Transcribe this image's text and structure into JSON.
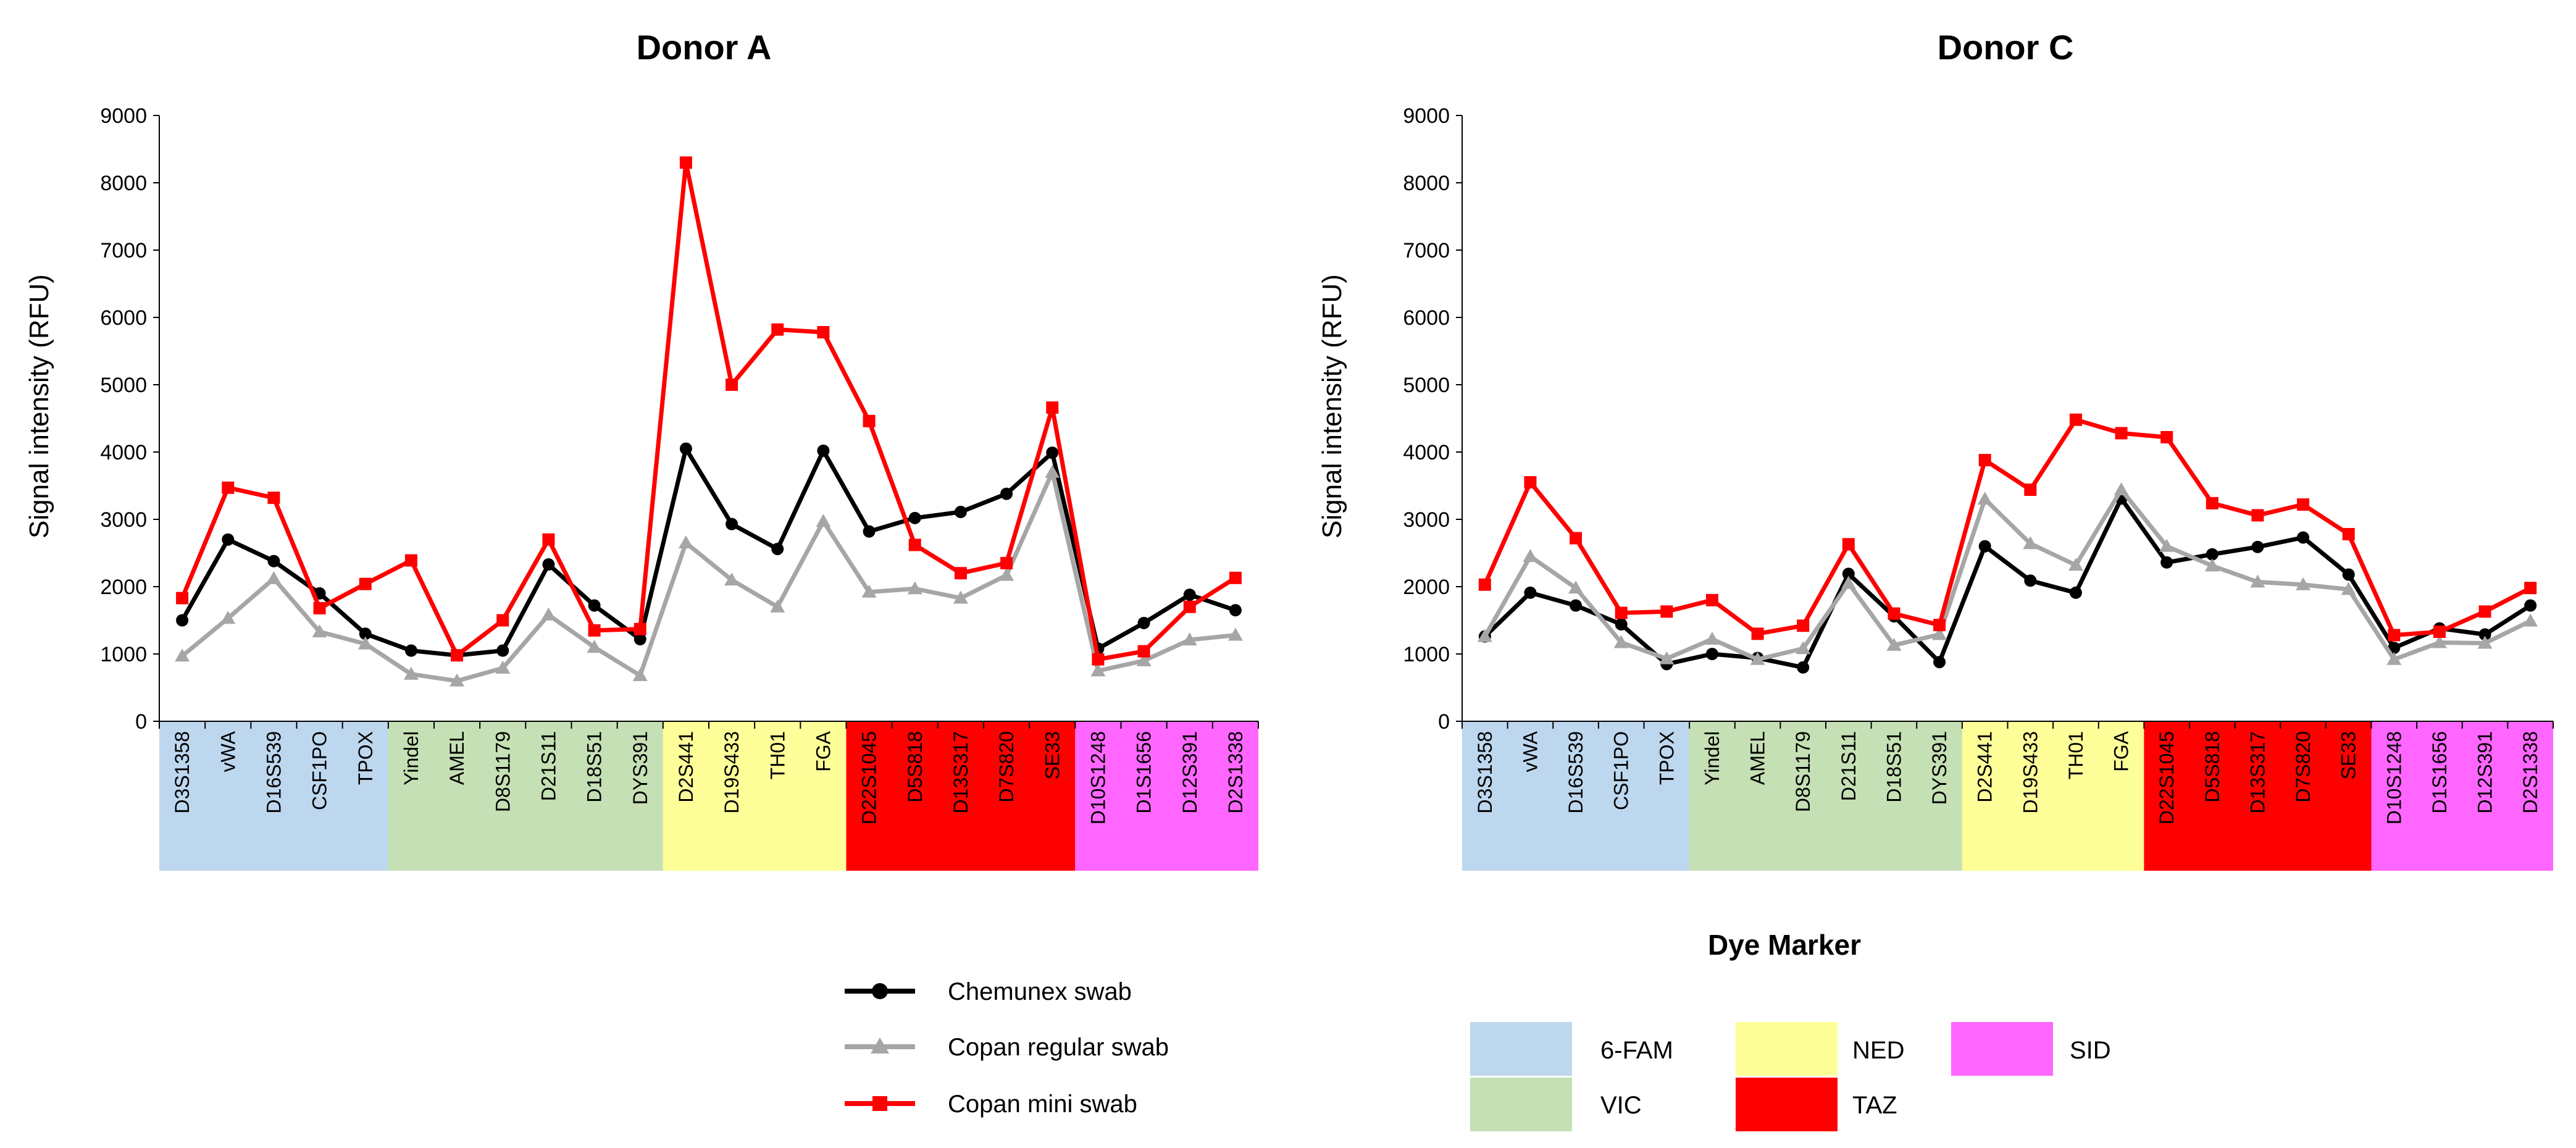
{
  "chart_data": [
    {
      "type": "line",
      "title": "Donor A",
      "xlabel": "",
      "ylabel": "Signal intensity (RFU)",
      "ylim": [
        0,
        9000
      ],
      "yticks": [
        0,
        1000,
        2000,
        3000,
        4000,
        5000,
        6000,
        7000,
        8000,
        9000
      ],
      "categories": [
        "D3S1358",
        "vWA",
        "D16S539",
        "CSF1PO",
        "TPOX",
        "Yindel",
        "AMEL",
        "D8S1179",
        "D21S11",
        "D18S51",
        "DYS391",
        "D2S441",
        "D19S433",
        "TH01",
        "FGA",
        "D22S1045",
        "D5S818",
        "D13S317",
        "D7S820",
        "SE33",
        "D10S1248",
        "D1S1656",
        "D12S391",
        "D2S1338"
      ],
      "dye_groups": [
        {
          "dye": "6-FAM",
          "count": 5
        },
        {
          "dye": "VIC",
          "count": 6
        },
        {
          "dye": "NED",
          "count": 4
        },
        {
          "dye": "TAZ",
          "count": 5
        },
        {
          "dye": "SID",
          "count": 4
        }
      ],
      "series": [
        {
          "name": "Chemunex swab",
          "values": [
            1500,
            2700,
            2380,
            1900,
            1300,
            1050,
            980,
            1050,
            2330,
            1720,
            1220,
            4050,
            2930,
            2560,
            4020,
            2820,
            3020,
            3110,
            3380,
            3990,
            1080,
            1460,
            1880,
            1650
          ]
        },
        {
          "name": "Copan regular swab",
          "values": [
            970,
            1530,
            2120,
            1330,
            1150,
            700,
            600,
            790,
            1580,
            1100,
            680,
            2650,
            2100,
            1700,
            2970,
            1920,
            1970,
            1830,
            2170,
            3700,
            750,
            900,
            1210,
            1280
          ]
        },
        {
          "name": "Copan mini swab",
          "values": [
            1830,
            3470,
            3320,
            1680,
            2040,
            2390,
            980,
            1500,
            2700,
            1350,
            1370,
            8300,
            5000,
            5820,
            5780,
            4460,
            2620,
            2200,
            2350,
            4660,
            920,
            1040,
            1700,
            2130
          ]
        }
      ]
    },
    {
      "type": "line",
      "title": "Donor C",
      "xlabel": "",
      "ylabel": "Signal intensity (RFU)",
      "ylim": [
        0,
        9000
      ],
      "yticks": [
        0,
        1000,
        2000,
        3000,
        4000,
        5000,
        6000,
        7000,
        8000,
        9000
      ],
      "categories": [
        "D3S1358",
        "vWA",
        "D16S539",
        "CSF1PO",
        "TPOX",
        "Yindel",
        "AMEL",
        "D8S1179",
        "D21S11",
        "D18S51",
        "DYS391",
        "D2S441",
        "D19S433",
        "TH01",
        "FGA",
        "D22S1045",
        "D5S818",
        "D13S317",
        "D7S820",
        "SE33",
        "D10S1248",
        "D1S1656",
        "D12S391",
        "D2S1338"
      ],
      "dye_groups": [
        {
          "dye": "6-FAM",
          "count": 5
        },
        {
          "dye": "VIC",
          "count": 6
        },
        {
          "dye": "NED",
          "count": 4
        },
        {
          "dye": "TAZ",
          "count": 5
        },
        {
          "dye": "SID",
          "count": 4
        }
      ],
      "series": [
        {
          "name": "Chemunex swab",
          "values": [
            1260,
            1910,
            1720,
            1440,
            850,
            1000,
            940,
            800,
            2190,
            1560,
            880,
            2600,
            2090,
            1910,
            3310,
            2360,
            2480,
            2590,
            2730,
            2180,
            1090,
            1380,
            1290,
            1720
          ]
        },
        {
          "name": "Copan regular swab",
          "values": [
            1260,
            2450,
            1980,
            1170,
            930,
            1220,
            920,
            1080,
            2050,
            1130,
            1290,
            3300,
            2640,
            2320,
            3440,
            2600,
            2310,
            2070,
            2030,
            1960,
            920,
            1170,
            1160,
            1490
          ]
        },
        {
          "name": "Copan mini swab",
          "values": [
            2030,
            3550,
            2720,
            1610,
            1630,
            1800,
            1300,
            1420,
            2630,
            1600,
            1430,
            3880,
            3440,
            4480,
            4280,
            4220,
            3240,
            3060,
            3220,
            2780,
            1280,
            1330,
            1630,
            1980
          ]
        }
      ]
    }
  ],
  "legend": {
    "items": [
      {
        "name": "Chemunex swab",
        "color": "#000000",
        "marker": "circle"
      },
      {
        "name": "Copan regular swab",
        "color": "#a6a6a6",
        "marker": "triangle"
      },
      {
        "name": "Copan mini swab",
        "color": "#ff0000",
        "marker": "square"
      }
    ]
  },
  "dye_legend": {
    "title": "Dye Marker",
    "items": [
      {
        "name": "6-FAM",
        "color": "#bdd7ee"
      },
      {
        "name": "VIC",
        "color": "#c5e0b4"
      },
      {
        "name": "NED",
        "color": "#ffff99"
      },
      {
        "name": "TAZ",
        "color": "#ff0000"
      },
      {
        "name": "SID",
        "color": "#ff66ff"
      }
    ]
  }
}
